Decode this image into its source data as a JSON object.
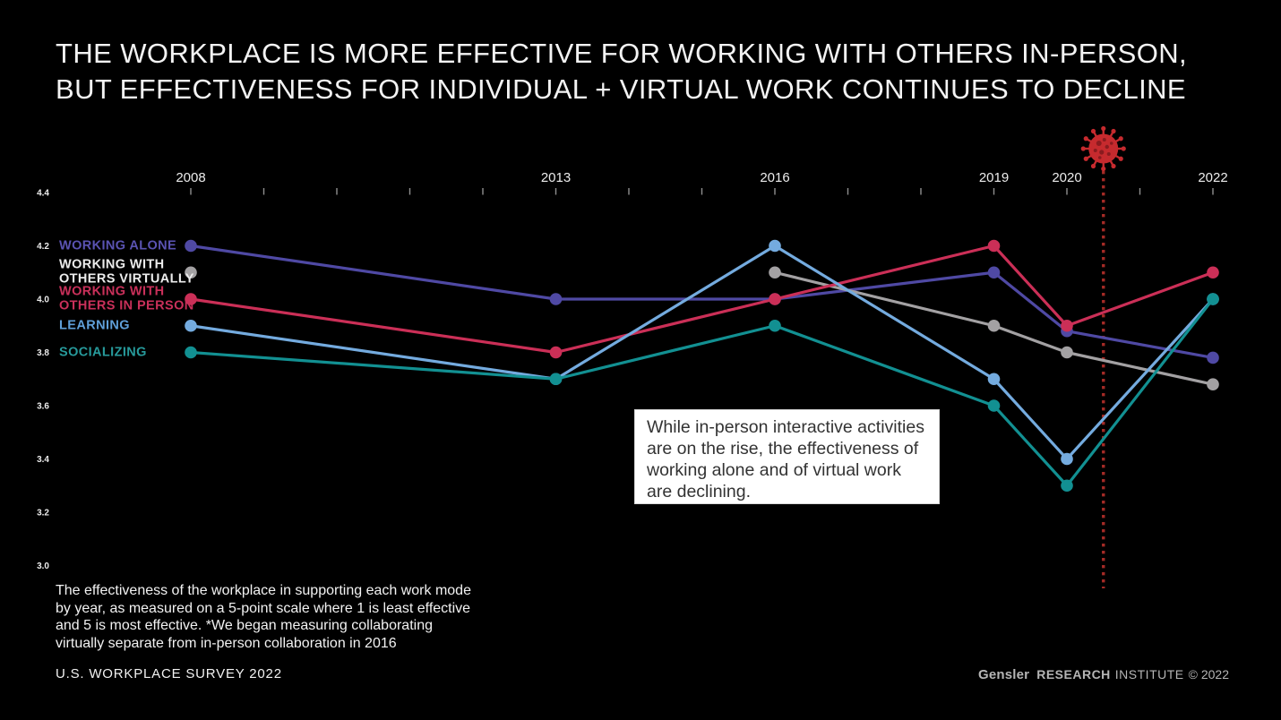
{
  "title": "THE WORKPLACE IS MORE EFFECTIVE FOR WORKING WITH OTHERS IN-PERSON,\nBUT EFFECTIVENESS FOR INDIVIDUAL + VIRTUAL WORK CONTINUES TO DECLINE",
  "chart_data": {
    "type": "line",
    "x": [
      2008,
      2013,
      2016,
      2019,
      2020,
      2022
    ],
    "x_axis": {
      "tick_start": 2008,
      "tick_end": 2022,
      "labeled_years": [
        2008,
        2013,
        2016,
        2019,
        2020,
        2022
      ]
    },
    "y_axis": {
      "min": 3.0,
      "max": 4.4,
      "ticks": [
        4.4,
        4.2,
        4.0,
        3.8,
        3.6,
        3.4,
        3.2,
        3.0
      ]
    },
    "scale_note": "5-point scale, 1 least effective, 5 most effective",
    "series": [
      {
        "name": "WORKING ALONE",
        "label_lines": [
          "WORKING ALONE"
        ],
        "color": "#4f49a4",
        "label_color": "#5a53b2",
        "values": [
          4.2,
          4.0,
          4.0,
          4.1,
          3.88,
          3.78
        ]
      },
      {
        "name": "WORKING WITH OTHERS VIRTUALLY",
        "label_lines": [
          "WORKING WITH",
          "OTHERS VIRTUALLY"
        ],
        "color": "#a3a1a3",
        "label_color": "#ececec",
        "values": [
          null,
          null,
          4.1,
          3.9,
          3.8,
          3.68
        ],
        "legend_marker_value": 4.1
      },
      {
        "name": "WORKING WITH OTHERS IN PERSON",
        "label_lines": [
          "WORKING WITH",
          "OTHERS IN PERSON"
        ],
        "color": "#cb2f57",
        "label_color": "#c9305a",
        "values": [
          4.0,
          3.8,
          4.0,
          4.2,
          3.9,
          4.1
        ]
      },
      {
        "name": "LEARNING",
        "label_lines": [
          "LEARNING"
        ],
        "color": "#74abdf",
        "label_color": "#5f9fd8",
        "values": [
          3.9,
          3.7,
          4.2,
          3.7,
          3.4,
          4.0
        ]
      },
      {
        "name": "SOCIALIZING",
        "label_lines": [
          "SOCIALIZING"
        ],
        "color": "#129092",
        "label_color": "#279a9b",
        "values": [
          3.8,
          3.7,
          3.9,
          3.6,
          3.3,
          4.0
        ]
      }
    ],
    "covid_marker": {
      "year": 2020.5,
      "color": "#a42a26",
      "icon_color": "#c62a2e",
      "icon": "coronavirus-icon"
    },
    "annotation": "While in-person interactive activities\nare on the rise, the effectiveness of\nworking alone and of virtual work\nare declining.",
    "legend_position": "left",
    "grid": false
  },
  "footnote": "The effectiveness of the workplace in supporting each work mode\nby year, as measured on a 5-point scale where 1 is least effective\nand 5 is most effective. *We began measuring collaborating\nvirtually separate from in-person collaboration in 2016",
  "source_label": "U.S. WORKPLACE SURVEY 2022",
  "brand": {
    "name": "Gensler",
    "research": "RESEARCH",
    "institute": "INSTITUTE",
    "copyright": "© 2022"
  },
  "colors": {
    "background": "#000000",
    "title_text": "#f3f3f3",
    "axis_text": "#ececec",
    "tick": "#8f8f8f"
  }
}
